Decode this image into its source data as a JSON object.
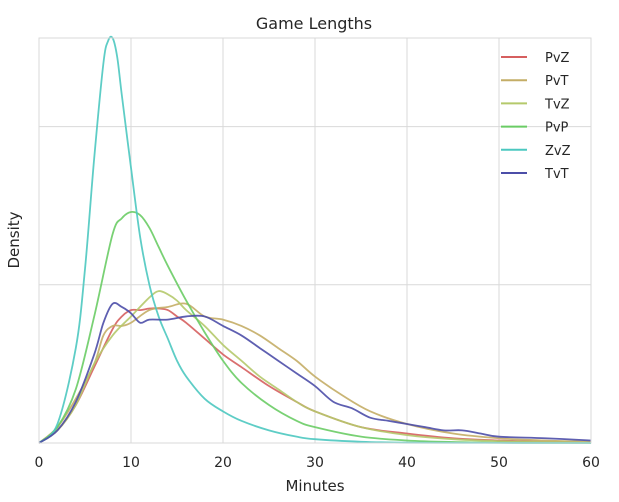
{
  "chart_data": {
    "type": "line",
    "title": "Game Lengths",
    "xlabel": "Minutes",
    "ylabel": "Density",
    "xlim": [
      0,
      60
    ],
    "ylim": [
      0,
      0.128
    ],
    "x_ticks": [
      0,
      10,
      20,
      30,
      40,
      50,
      60
    ],
    "y_gridlines": [
      0.05,
      0.1
    ],
    "y_tick_labels_shown": false,
    "grid": true,
    "legend_position": "top-right",
    "series": [
      {
        "name": "PvZ",
        "color": "#d65f5f",
        "x": [
          0,
          2,
          4,
          6,
          8,
          9,
          10,
          11,
          12,
          13,
          14,
          15,
          16,
          18,
          20,
          22,
          25,
          28,
          30,
          35,
          40,
          45,
          50,
          55,
          60
        ],
        "y": [
          0.0,
          0.004,
          0.012,
          0.024,
          0.036,
          0.04,
          0.042,
          0.042,
          0.0425,
          0.0425,
          0.042,
          0.04,
          0.038,
          0.033,
          0.028,
          0.024,
          0.018,
          0.013,
          0.01,
          0.005,
          0.003,
          0.0015,
          0.0008,
          0.0004,
          0.0002
        ]
      },
      {
        "name": "PvT",
        "color": "#c4ad66",
        "x": [
          0,
          2,
          4,
          6,
          7,
          8,
          9,
          10,
          12,
          14,
          16,
          18,
          20,
          22,
          24,
          26,
          28,
          30,
          33,
          36,
          40,
          45,
          50,
          55,
          60
        ],
        "y": [
          0.0,
          0.005,
          0.014,
          0.025,
          0.034,
          0.037,
          0.037,
          0.038,
          0.042,
          0.043,
          0.044,
          0.04,
          0.039,
          0.037,
          0.034,
          0.03,
          0.026,
          0.021,
          0.015,
          0.01,
          0.006,
          0.003,
          0.0015,
          0.0008,
          0.0004
        ]
      },
      {
        "name": "TvZ",
        "color": "#b5c96b",
        "x": [
          0,
          2,
          4,
          6,
          8,
          10,
          12,
          13,
          14,
          15,
          16,
          18,
          20,
          22,
          24,
          26,
          28,
          30,
          35,
          40,
          45,
          50,
          55,
          60
        ],
        "y": [
          0.0,
          0.004,
          0.012,
          0.025,
          0.034,
          0.04,
          0.046,
          0.048,
          0.047,
          0.045,
          0.042,
          0.037,
          0.031,
          0.026,
          0.021,
          0.017,
          0.013,
          0.01,
          0.005,
          0.0025,
          0.0012,
          0.0006,
          0.0003,
          0.0001
        ]
      },
      {
        "name": "PvP",
        "color": "#6acc65",
        "x": [
          0,
          2,
          4,
          6,
          8,
          9,
          10,
          11,
          12,
          13,
          14,
          16,
          18,
          20,
          22,
          25,
          28,
          30,
          35,
          40,
          45,
          50,
          55,
          60
        ],
        "y": [
          0.0,
          0.005,
          0.017,
          0.04,
          0.066,
          0.071,
          0.073,
          0.072,
          0.068,
          0.062,
          0.056,
          0.045,
          0.035,
          0.026,
          0.019,
          0.012,
          0.007,
          0.005,
          0.002,
          0.0008,
          0.0003,
          0.0001,
          5e-05,
          2e-05
        ]
      },
      {
        "name": "ZvZ",
        "color": "#4cc8c0",
        "x": [
          0,
          2,
          4,
          5,
          6,
          7,
          7.5,
          8,
          8.5,
          9,
          10,
          11,
          12,
          13,
          14,
          15,
          16,
          18,
          20,
          22,
          25,
          28,
          30,
          35,
          40,
          50,
          60
        ],
        "y": [
          0.0,
          0.006,
          0.03,
          0.055,
          0.09,
          0.12,
          0.127,
          0.128,
          0.122,
          0.11,
          0.087,
          0.065,
          0.05,
          0.04,
          0.033,
          0.026,
          0.021,
          0.014,
          0.01,
          0.007,
          0.004,
          0.002,
          0.0012,
          0.0004,
          0.0001,
          3e-05,
          1e-05
        ]
      },
      {
        "name": "TvT",
        "color": "#4c4ea8",
        "x": [
          0,
          2,
          4,
          6,
          7,
          8,
          9,
          10,
          11,
          12,
          14,
          16,
          18,
          20,
          22,
          24,
          26,
          28,
          30,
          32,
          34,
          36,
          38,
          40,
          42,
          44,
          46,
          48,
          50,
          55,
          60
        ],
        "y": [
          0.0,
          0.004,
          0.013,
          0.028,
          0.038,
          0.044,
          0.043,
          0.041,
          0.038,
          0.039,
          0.039,
          0.04,
          0.04,
          0.037,
          0.034,
          0.03,
          0.026,
          0.022,
          0.018,
          0.013,
          0.011,
          0.008,
          0.007,
          0.006,
          0.005,
          0.004,
          0.004,
          0.003,
          0.002,
          0.0015,
          0.0008
        ]
      }
    ]
  }
}
